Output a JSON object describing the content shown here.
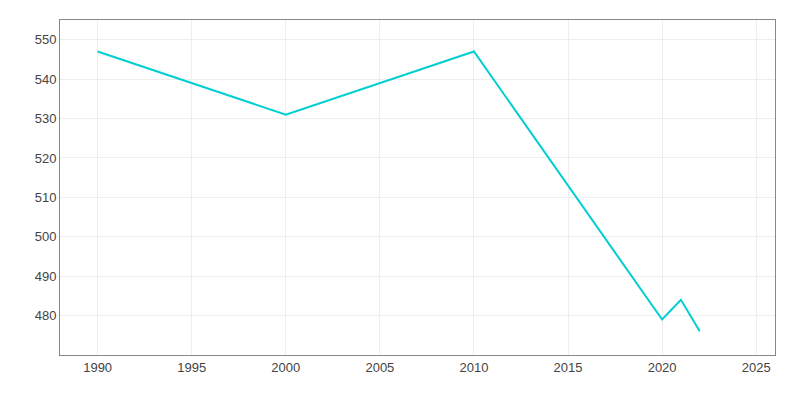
{
  "chart_data": {
    "type": "line",
    "x": [
      1990,
      2000,
      2010,
      2020,
      2021,
      2022
    ],
    "values": [
      547,
      531,
      547,
      479,
      484,
      476
    ],
    "color": "#00CED1",
    "xlim": [
      1988,
      2026
    ],
    "ylim": [
      470,
      555
    ],
    "xticks": [
      1990,
      1995,
      2000,
      2005,
      2010,
      2015,
      2020,
      2025
    ],
    "yticks": [
      480,
      490,
      500,
      510,
      520,
      530,
      540,
      550
    ],
    "grid": true
  }
}
